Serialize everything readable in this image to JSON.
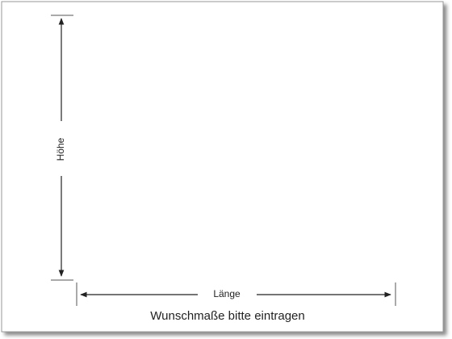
{
  "labels": {
    "height": "Höhe",
    "length": "Länge",
    "caption": "Wunschmaße bitte eintragen"
  }
}
